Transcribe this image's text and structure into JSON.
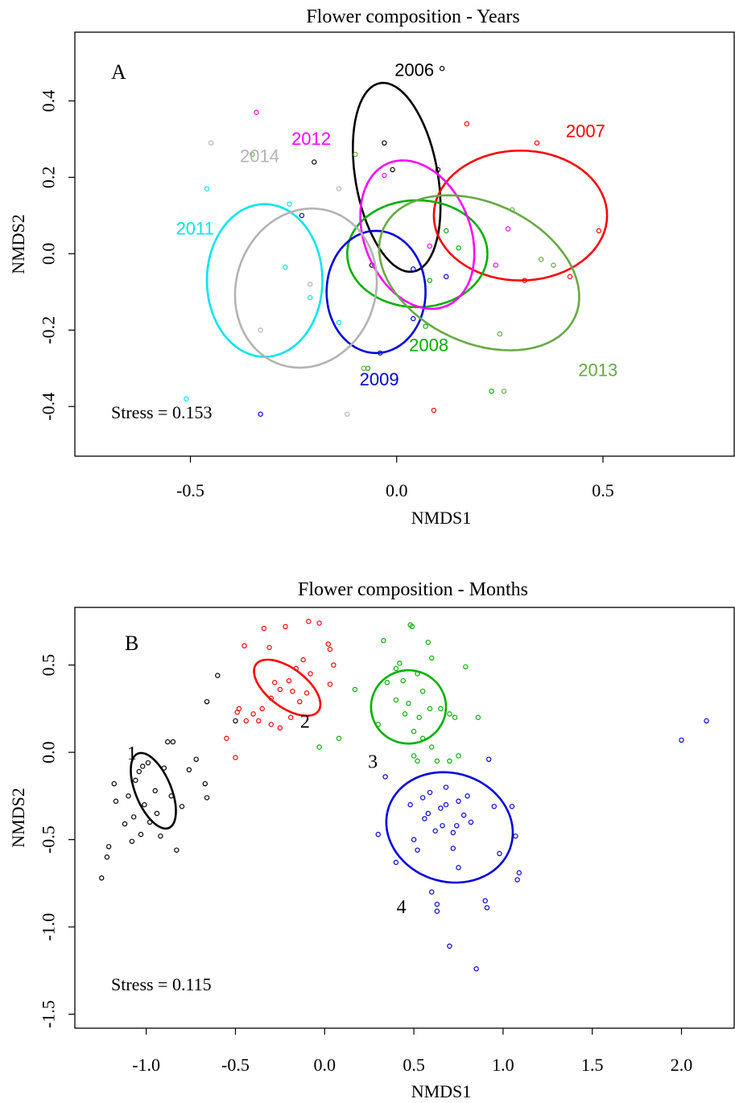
{
  "chart_data": [
    {
      "type": "scatter",
      "title": "Flower composition - Years",
      "panel_label": "A",
      "xlabel": "NMDS1",
      "ylabel": "NMDS2",
      "xlim": [
        -0.78,
        0.82
      ],
      "ylim": [
        -0.53,
        0.58
      ],
      "xticks": [
        -0.5,
        0.0,
        0.5
      ],
      "yticks": [
        -0.4,
        -0.2,
        0.0,
        0.2,
        0.4
      ],
      "tick_labels_x": [
        "-0.5",
        "0.0",
        "0.5"
      ],
      "tick_labels_y": [
        "-0.4",
        "-0.2",
        "0.0",
        "0.2",
        "0.4"
      ],
      "grid": false,
      "legend": "none (ellipse labels drawn on plot)",
      "annotation": "Stress = 0.153",
      "series": [
        {
          "name": "2006",
          "color": "#000000",
          "points": [
            [
              0.11,
              0.485
            ],
            [
              -0.2,
              0.24
            ],
            [
              -0.03,
              0.29
            ],
            [
              -0.01,
              0.22
            ],
            [
              0.1,
              0.22
            ],
            [
              -0.06,
              -0.03
            ]
          ],
          "ellipse": {
            "cx": 0.0,
            "cy": 0.2,
            "rx": 0.1,
            "ry": 0.25,
            "angle": 9
          }
        },
        {
          "name": "2007",
          "color": "#ff0000",
          "points": [
            [
              0.17,
              0.34
            ],
            [
              0.34,
              0.29
            ],
            [
              0.49,
              0.06
            ],
            [
              0.31,
              -0.07
            ],
            [
              0.42,
              -0.06
            ],
            [
              0.09,
              -0.41
            ]
          ],
          "ellipse": {
            "cx": 0.3,
            "cy": 0.1,
            "rx": 0.21,
            "ry": 0.17,
            "angle": 0
          }
        },
        {
          "name": "2008",
          "color": "#00b000",
          "points": [
            [
              0.12,
              0.06
            ],
            [
              0.15,
              0.015
            ],
            [
              0.08,
              -0.07
            ],
            [
              -0.07,
              -0.3
            ],
            [
              0.07,
              -0.19
            ],
            [
              0.23,
              -0.36
            ]
          ],
          "ellipse": {
            "cx": 0.05,
            "cy": 0.0,
            "rx": 0.17,
            "ry": 0.14,
            "angle": 0
          }
        },
        {
          "name": "2009",
          "color": "#0000dd",
          "points": [
            [
              -0.23,
              0.1
            ],
            [
              0.04,
              -0.04
            ],
            [
              0.12,
              -0.06
            ],
            [
              0.04,
              -0.17
            ],
            [
              -0.04,
              -0.26
            ],
            [
              -0.33,
              -0.42
            ]
          ],
          "ellipse": {
            "cx": -0.05,
            "cy": -0.1,
            "rx": 0.12,
            "ry": 0.16,
            "angle": 0
          }
        },
        {
          "name": "2011",
          "color": "#00e5ee",
          "points": [
            [
              -0.46,
              0.17
            ],
            [
              -0.26,
              0.13
            ],
            [
              -0.27,
              -0.035
            ],
            [
              -0.21,
              -0.115
            ],
            [
              -0.14,
              -0.18
            ],
            [
              -0.51,
              -0.38
            ]
          ],
          "ellipse": {
            "cx": -0.32,
            "cy": -0.07,
            "rx": 0.14,
            "ry": 0.2,
            "angle": 0
          }
        },
        {
          "name": "2012",
          "color": "#ff00ff",
          "points": [
            [
              -0.34,
              0.37
            ],
            [
              -0.03,
              0.205
            ],
            [
              0.08,
              0.02
            ],
            [
              0.24,
              -0.03
            ],
            [
              0.27,
              0.065
            ]
          ],
          "ellipse": {
            "cx": 0.05,
            "cy": 0.05,
            "rx": 0.13,
            "ry": 0.2,
            "angle": 18
          }
        },
        {
          "name": "2013",
          "color": "#66aa44",
          "points": [
            [
              -0.35,
              0.26
            ],
            [
              -0.1,
              0.26
            ],
            [
              0.28,
              0.115
            ],
            [
              0.35,
              -0.015
            ],
            [
              0.38,
              -0.03
            ],
            [
              0.25,
              -0.21
            ],
            [
              -0.08,
              -0.3
            ],
            [
              0.26,
              -0.36
            ]
          ],
          "ellipse": {
            "cx": 0.2,
            "cy": -0.05,
            "rx": 0.26,
            "ry": 0.18,
            "angle": -30
          }
        },
        {
          "name": "2014",
          "color": "#b3b3b3",
          "points": [
            [
              -0.45,
              0.29
            ],
            [
              -0.14,
              0.17
            ],
            [
              -0.21,
              -0.08
            ],
            [
              -0.33,
              -0.2
            ],
            [
              -0.12,
              -0.42
            ]
          ],
          "ellipse": {
            "cx": -0.22,
            "cy": -0.09,
            "rx": 0.17,
            "ry": 0.21,
            "angle": -12
          }
        }
      ]
    },
    {
      "type": "scatter",
      "title": "Flower composition - Months",
      "panel_label": "B",
      "xlabel": "NMDS1",
      "ylabel": "NMDS2",
      "xlim": [
        -1.4,
        2.3
      ],
      "ylim": [
        -1.58,
        0.83
      ],
      "xticks": [
        -1.0,
        -0.5,
        0.0,
        0.5,
        1.0,
        1.5,
        2.0
      ],
      "yticks": [
        -1.5,
        -1.0,
        -0.5,
        0.0,
        0.5
      ],
      "tick_labels_x": [
        "-1.0",
        "-0.5",
        "0.0",
        "0.5",
        "1.0",
        "1.5",
        "2.0"
      ],
      "tick_labels_y": [
        "-1.5",
        "-1.0",
        "-0.5",
        "0.0",
        "0.5"
      ],
      "grid": false,
      "legend": "none (ellipse labels drawn on plot)",
      "annotation": "Stress = 0.115",
      "series": [
        {
          "name": "1",
          "color": "#000000",
          "points": [
            [
              -1.25,
              -0.72
            ],
            [
              -1.22,
              -0.6
            ],
            [
              -1.21,
              -0.54
            ],
            [
              -1.18,
              -0.18
            ],
            [
              -1.17,
              -0.28
            ],
            [
              -1.12,
              -0.41
            ],
            [
              -1.1,
              -0.25
            ],
            [
              -1.06,
              -0.16
            ],
            [
              -1.04,
              -0.11
            ],
            [
              -1.02,
              -0.08
            ],
            [
              -0.99,
              -0.06
            ],
            [
              -1.01,
              -0.3
            ],
            [
              -0.98,
              -0.4
            ],
            [
              -0.95,
              -0.22
            ],
            [
              -0.92,
              -0.48
            ],
            [
              -0.88,
              0.06
            ],
            [
              -0.85,
              0.06
            ],
            [
              -0.86,
              -0.25
            ],
            [
              -0.83,
              -0.56
            ],
            [
              -0.8,
              -0.31
            ],
            [
              -0.72,
              -0.04
            ],
            [
              -0.66,
              -0.26
            ],
            [
              -0.67,
              -0.18
            ],
            [
              -0.94,
              -0.35
            ],
            [
              -1.07,
              -0.37
            ],
            [
              -1.08,
              -0.51
            ],
            [
              -0.6,
              0.44
            ],
            [
              -0.66,
              0.29
            ],
            [
              -0.5,
              0.18
            ],
            [
              -1.03,
              -0.47
            ],
            [
              -0.9,
              -0.09
            ],
            [
              -0.76,
              -0.1
            ]
          ],
          "ellipse": {
            "cx": -0.96,
            "cy": -0.22,
            "rx": 0.1,
            "ry": 0.23,
            "angle": 22
          }
        },
        {
          "name": "2",
          "color": "#ff0000",
          "points": [
            [
              -0.45,
              0.61
            ],
            [
              -0.34,
              0.71
            ],
            [
              -0.22,
              0.72
            ],
            [
              -0.09,
              0.75
            ],
            [
              -0.03,
              0.74
            ],
            [
              0.02,
              0.62
            ],
            [
              0.03,
              0.59
            ],
            [
              0.05,
              0.5
            ],
            [
              0.03,
              0.39
            ],
            [
              -0.12,
              0.53
            ],
            [
              -0.16,
              0.48
            ],
            [
              -0.2,
              0.41
            ],
            [
              -0.25,
              0.36
            ],
            [
              -0.3,
              0.31
            ],
            [
              -0.35,
              0.25
            ],
            [
              -0.4,
              0.22
            ],
            [
              -0.44,
              0.18
            ],
            [
              -0.48,
              0.25
            ],
            [
              -0.49,
              0.23
            ],
            [
              -0.37,
              0.18
            ],
            [
              -0.3,
              0.16
            ],
            [
              -0.25,
              0.14
            ],
            [
              -0.19,
              0.2
            ],
            [
              -0.14,
              0.29
            ],
            [
              -0.1,
              0.34
            ],
            [
              -0.08,
              0.45
            ],
            [
              -0.31,
              0.6
            ],
            [
              -0.55,
              0.08
            ],
            [
              -0.5,
              -0.03
            ],
            [
              -0.18,
              0.35
            ],
            [
              -0.28,
              0.4
            ]
          ],
          "ellipse": {
            "cx": -0.21,
            "cy": 0.37,
            "rx": 0.22,
            "ry": 0.11,
            "angle": -38
          }
        },
        {
          "name": "3",
          "color": "#00b000",
          "points": [
            [
              0.33,
              0.64
            ],
            [
              0.48,
              0.73
            ],
            [
              0.49,
              0.72
            ],
            [
              0.58,
              0.63
            ],
            [
              0.6,
              0.54
            ],
            [
              0.79,
              0.49
            ],
            [
              0.42,
              0.51
            ],
            [
              0.52,
              0.45
            ],
            [
              0.55,
              0.35
            ],
            [
              0.47,
              0.28
            ],
            [
              0.45,
              0.22
            ],
            [
              0.5,
              0.12
            ],
            [
              0.55,
              0.08
            ],
            [
              0.6,
              0.03
            ],
            [
              0.63,
              -0.05
            ],
            [
              0.7,
              -0.05
            ],
            [
              0.75,
              -0.02
            ],
            [
              0.86,
              0.2
            ],
            [
              0.7,
              0.22
            ],
            [
              0.73,
              0.2
            ],
            [
              0.65,
              0.25
            ],
            [
              0.5,
              -0.02
            ],
            [
              0.52,
              -0.05
            ],
            [
              0.3,
              0.16
            ],
            [
              0.08,
              0.08
            ],
            [
              -0.03,
              0.03
            ],
            [
              0.17,
              0.36
            ],
            [
              0.35,
              0.4
            ],
            [
              0.4,
              0.3
            ],
            [
              0.44,
              0.41
            ],
            [
              0.4,
              0.48
            ],
            [
              0.59,
              0.25
            ],
            [
              0.53,
              0.2
            ]
          ],
          "ellipse": {
            "cx": 0.47,
            "cy": 0.26,
            "rx": 0.21,
            "ry": 0.21,
            "angle": 0
          }
        },
        {
          "name": "4",
          "color": "#0000dd",
          "points": [
            [
              2.0,
              0.07
            ],
            [
              2.14,
              0.18
            ],
            [
              0.92,
              -0.04
            ],
            [
              0.34,
              -0.14
            ],
            [
              0.3,
              -0.47
            ],
            [
              0.4,
              -0.63
            ],
            [
              0.5,
              -0.5
            ],
            [
              0.52,
              -0.56
            ],
            [
              0.55,
              -0.26
            ],
            [
              0.58,
              -0.35
            ],
            [
              0.62,
              -0.45
            ],
            [
              0.63,
              -0.87
            ],
            [
              0.63,
              -0.91
            ],
            [
              0.6,
              -0.8
            ],
            [
              0.7,
              -1.11
            ],
            [
              0.68,
              -0.3
            ],
            [
              0.72,
              -0.55
            ],
            [
              0.75,
              -0.28
            ],
            [
              0.78,
              -0.36
            ],
            [
              0.8,
              -0.25
            ],
            [
              0.82,
              -0.4
            ],
            [
              0.85,
              -1.24
            ],
            [
              0.9,
              -0.85
            ],
            [
              0.91,
              -0.89
            ],
            [
              0.95,
              -0.31
            ],
            [
              0.98,
              -0.58
            ],
            [
              1.05,
              -0.31
            ],
            [
              1.07,
              -0.48
            ],
            [
              1.08,
              -0.73
            ],
            [
              1.09,
              -0.69
            ],
            [
              0.48,
              -0.3
            ],
            [
              0.56,
              -0.38
            ],
            [
              0.65,
              -0.32
            ],
            [
              0.72,
              -0.46
            ],
            [
              0.59,
              -0.23
            ],
            [
              0.75,
              -0.66
            ],
            [
              0.66,
              -0.42
            ],
            [
              0.74,
              -0.42
            ],
            [
              0.68,
              -0.2
            ]
          ],
          "ellipse": {
            "cx": 0.7,
            "cy": -0.43,
            "rx": 0.36,
            "ry": 0.31,
            "angle": -20
          }
        }
      ]
    }
  ]
}
